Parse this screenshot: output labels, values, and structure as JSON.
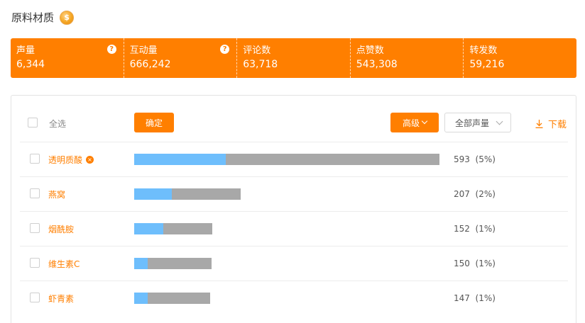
{
  "header": {
    "title": "原料材质",
    "coin_icon_glyph": "$"
  },
  "stats": [
    {
      "label": "声量",
      "value": "6,344",
      "help": true
    },
    {
      "label": "互动量",
      "value": "666,242",
      "help": true
    },
    {
      "label": "评论数",
      "value": "63,718",
      "help": false
    },
    {
      "label": "点赞数",
      "value": "543,308",
      "help": false
    },
    {
      "label": "转发数",
      "value": "59,216",
      "help": false
    }
  ],
  "help_glyph": "?",
  "toolbar": {
    "select_all": "全选",
    "confirm": "确定",
    "advanced": "高级",
    "dropdown_value": "全部声量",
    "download": "下载"
  },
  "colors": {
    "accent": "#ff7f00",
    "bar_fill": "#6ebefc",
    "bar_track": "#a8a8a8"
  },
  "items": [
    {
      "label": "透明质酸",
      "value": "593",
      "percent": "(5%)",
      "removable": true,
      "total": 593,
      "fill": 0.3
    },
    {
      "label": "燕窝",
      "value": "207",
      "percent": "(2%)",
      "removable": false,
      "total": 207,
      "fill": 0.35
    },
    {
      "label": "烟酰胺",
      "value": "152",
      "percent": "(1%)",
      "removable": false,
      "total": 152,
      "fill": 0.37
    },
    {
      "label": "维生素C",
      "value": "150",
      "percent": "(1%)",
      "removable": false,
      "total": 150,
      "fill": 0.17
    },
    {
      "label": "虾青素",
      "value": "147",
      "percent": "(1%)",
      "removable": false,
      "total": 147,
      "fill": 0.18
    }
  ]
}
